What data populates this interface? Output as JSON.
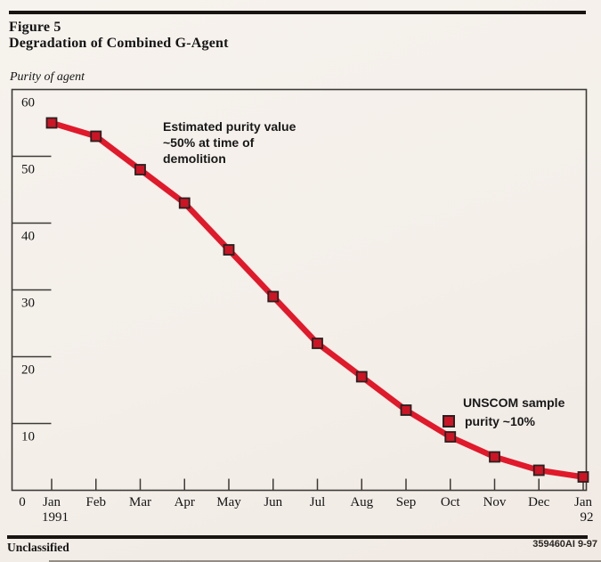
{
  "page": {
    "figure_label": "Figure 5",
    "title": "Degradation of Combined G-Agent",
    "y_axis_caption": "Purity of agent",
    "footer_left": "Unclassified",
    "footer_right": "359460AI 9-97"
  },
  "annotation": {
    "text": "Estimated purity value\n~50% at time of\ndemolition"
  },
  "legend": {
    "line1": "UNSCOM sample",
    "line2": "purity ~10%",
    "marker": "red-square"
  },
  "colors": {
    "line": "#e0192b",
    "marker_fill": "#cc1425",
    "marker_border": "#262220",
    "axis": "#3d3a37",
    "text": "#141414",
    "paper": "#f4efe9"
  },
  "chart_data": {
    "type": "line",
    "title": "Degradation of Combined G-Agent",
    "xlabel": "",
    "ylabel": "Purity of agent",
    "ylim": [
      0,
      60
    ],
    "y_ticks": [
      60,
      50,
      40,
      30,
      20,
      10
    ],
    "origin_label": "0",
    "grid": false,
    "marker": "square",
    "legend_position": "inside-right",
    "categories": [
      "Jan",
      "Feb",
      "Mar",
      "Apr",
      "May",
      "Jun",
      "Jul",
      "Aug",
      "Sep",
      "Oct",
      "Nov",
      "Dec",
      "Jan"
    ],
    "category_sublabels": [
      "1991",
      "",
      "",
      "",
      "",
      "",
      "",
      "",
      "",
      "",
      "",
      "",
      "92"
    ],
    "series": [
      {
        "name": "Purity of agent (%)",
        "values": [
          55,
          53,
          48,
          43,
          36,
          29,
          22,
          17,
          12,
          8,
          5,
          3,
          2
        ]
      }
    ]
  }
}
